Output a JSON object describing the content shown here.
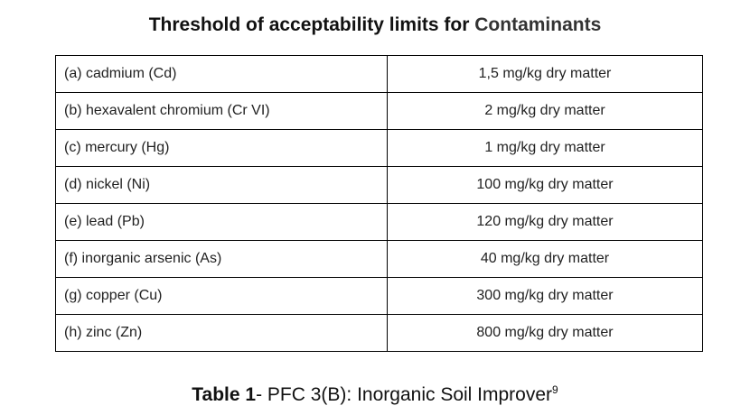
{
  "title": {
    "prefix": "Threshold of acceptability limits for ",
    "highlight": "Contaminants"
  },
  "table": {
    "rows": [
      {
        "contaminant": "(a) cadmium (Cd)",
        "limit": "1,5 mg/kg dry matter"
      },
      {
        "contaminant": "(b) hexavalent chromium (Cr VI)",
        "limit": "2 mg/kg dry matter"
      },
      {
        "contaminant": "(c) mercury (Hg)",
        "limit": "1 mg/kg dry matter"
      },
      {
        "contaminant": "(d) nickel (Ni)",
        "limit": "100 mg/kg dry matter"
      },
      {
        "contaminant": "(e) lead (Pb)",
        "limit": "120 mg/kg dry matter"
      },
      {
        "contaminant": "(f) inorganic arsenic (As)",
        "limit": "40 mg/kg dry matter"
      },
      {
        "contaminant": "(g) copper (Cu)",
        "limit": "300 mg/kg dry matter"
      },
      {
        "contaminant": "(h) zinc (Zn)",
        "limit": "800 mg/kg dry matter"
      }
    ]
  },
  "caption": {
    "label": "Table 1",
    "text": "- PFC 3(B): Inorganic Soil Improver",
    "footnote": "9"
  }
}
